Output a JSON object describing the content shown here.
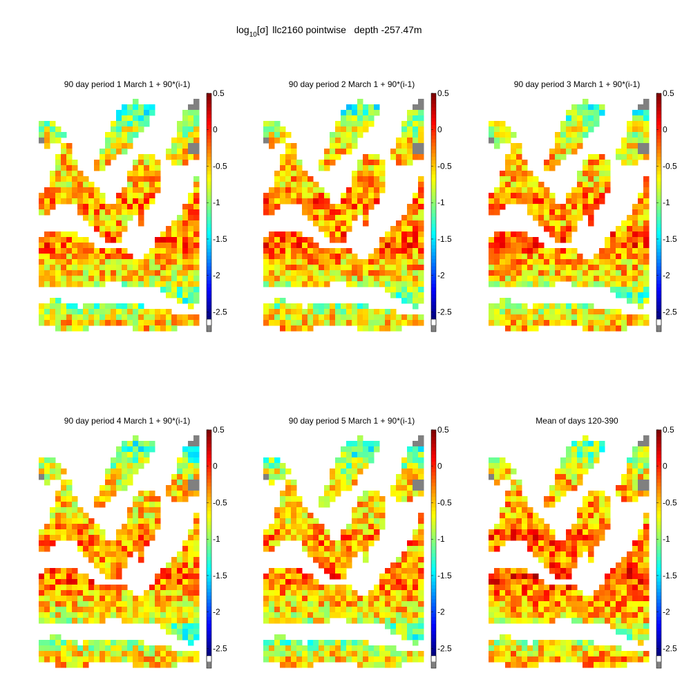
{
  "figure": {
    "title_prefix": "log",
    "title_sub": "10",
    "title_mid": "[σ]",
    "title_rest": "llc2160 pointwise   depth -257.47m"
  },
  "chart_data": [
    {
      "type": "heatmap",
      "title": "90 day period 1 March 1 + 90*(i-1)",
      "colorbar": {
        "ticks": [
          "0.5",
          "0",
          "-0.5",
          "-1",
          "-1.5",
          "-2",
          "-2.5"
        ],
        "range": [
          -2.6,
          0.5
        ],
        "colormap": "jet"
      },
      "field_mean": -0.55
    },
    {
      "type": "heatmap",
      "title": "90 day period 2 March 1 + 90*(i-1)",
      "colorbar": {
        "ticks": [
          "0.5",
          "0",
          "-0.5",
          "-1",
          "-1.5",
          "-2",
          "-2.5"
        ],
        "range": [
          -2.6,
          0.5
        ],
        "colormap": "jet"
      },
      "field_mean": -0.5
    },
    {
      "type": "heatmap",
      "title": "90 day period 3 March 1 + 90*(i-1)",
      "colorbar": {
        "ticks": [
          "0.5",
          "0",
          "-0.5",
          "-1",
          "-1.5",
          "-2",
          "-2.5"
        ],
        "range": [
          -2.6,
          0.5
        ],
        "colormap": "jet"
      },
      "field_mean": -0.5
    },
    {
      "type": "heatmap",
      "title": "90 day period 4 March 1 + 90*(i-1)",
      "colorbar": {
        "ticks": [
          "0.5",
          "0",
          "-0.5",
          "-1",
          "-1.5",
          "-2",
          "-2.5"
        ],
        "range": [
          -2.6,
          0.5
        ],
        "colormap": "jet"
      },
      "field_mean": -0.55
    },
    {
      "type": "heatmap",
      "title": "90 day period 5 March 1 + 90*(i-1)",
      "colorbar": {
        "ticks": [
          "0.5",
          "0",
          "-0.5",
          "-1",
          "-1.5",
          "-2",
          "-2.5"
        ],
        "range": [
          -2.6,
          0.5
        ],
        "colormap": "jet"
      },
      "field_mean": -0.55
    },
    {
      "type": "heatmap",
      "title": "Mean of days 120-390",
      "colorbar": {
        "ticks": [
          "0.5",
          "0",
          "-0.5",
          "-1",
          "-1.5",
          "-2",
          "-2.5"
        ],
        "range": [
          -2.6,
          0.5
        ],
        "colormap": "jet"
      },
      "field_mean": -0.4
    }
  ],
  "colors": {
    "land": "#ffffff",
    "missing": "#808080",
    "no_data": "#ffffff"
  }
}
